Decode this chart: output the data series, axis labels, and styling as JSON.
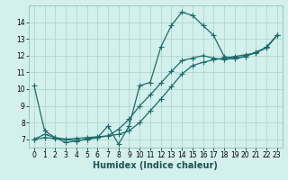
{
  "xlabel": "Humidex (Indice chaleur)",
  "bg_color": "#d4f0ec",
  "line_color": "#1a6b6b",
  "grid_color": "#b0d8d4",
  "xlim": [
    -0.5,
    23.5
  ],
  "ylim": [
    6.5,
    15.0
  ],
  "xticks": [
    0,
    1,
    2,
    3,
    4,
    5,
    6,
    7,
    8,
    9,
    10,
    11,
    12,
    13,
    14,
    15,
    16,
    17,
    18,
    19,
    20,
    21,
    22,
    23
  ],
  "yticks": [
    7,
    8,
    9,
    10,
    11,
    12,
    13,
    14
  ],
  "line1_x": [
    0,
    1,
    2,
    3,
    4,
    5,
    6,
    7,
    8,
    9,
    10,
    11,
    12,
    13,
    14,
    15,
    16,
    17,
    18,
    19,
    20,
    21,
    22,
    23
  ],
  "line1_y": [
    10.2,
    7.5,
    7.1,
    6.8,
    6.9,
    7.0,
    7.1,
    7.8,
    6.7,
    7.8,
    10.2,
    10.4,
    12.5,
    13.8,
    14.6,
    14.4,
    13.8,
    13.2,
    11.95,
    11.8,
    11.95,
    12.2,
    12.5,
    13.2
  ],
  "line2_x": [
    0,
    1,
    2,
    3,
    4,
    5,
    6,
    7,
    8,
    9,
    10,
    11,
    12,
    13,
    14,
    15,
    16,
    17,
    18,
    19,
    20,
    21,
    22,
    23
  ],
  "line2_y": [
    7.0,
    7.3,
    7.1,
    7.0,
    7.05,
    7.1,
    7.15,
    7.2,
    7.3,
    7.5,
    8.0,
    8.7,
    9.4,
    10.15,
    10.9,
    11.4,
    11.6,
    11.75,
    11.85,
    11.95,
    12.05,
    12.15,
    12.5,
    13.2
  ],
  "line3_x": [
    0,
    1,
    2,
    3,
    4,
    5,
    6,
    7,
    8,
    9,
    10,
    11,
    12,
    13,
    14,
    15,
    16,
    17,
    18,
    19,
    20,
    21,
    22,
    23
  ],
  "line3_y": [
    7.0,
    7.1,
    7.05,
    7.0,
    6.9,
    7.0,
    7.1,
    7.2,
    7.6,
    8.2,
    9.0,
    9.65,
    10.35,
    11.05,
    11.7,
    11.85,
    12.0,
    11.85,
    11.75,
    11.85,
    11.95,
    12.2,
    12.45,
    13.2
  ],
  "marker": "+",
  "markersize": 4,
  "linewidth": 0.9,
  "tick_fontsize": 5.5,
  "label_fontsize": 7.0,
  "label_fontweight": "bold"
}
